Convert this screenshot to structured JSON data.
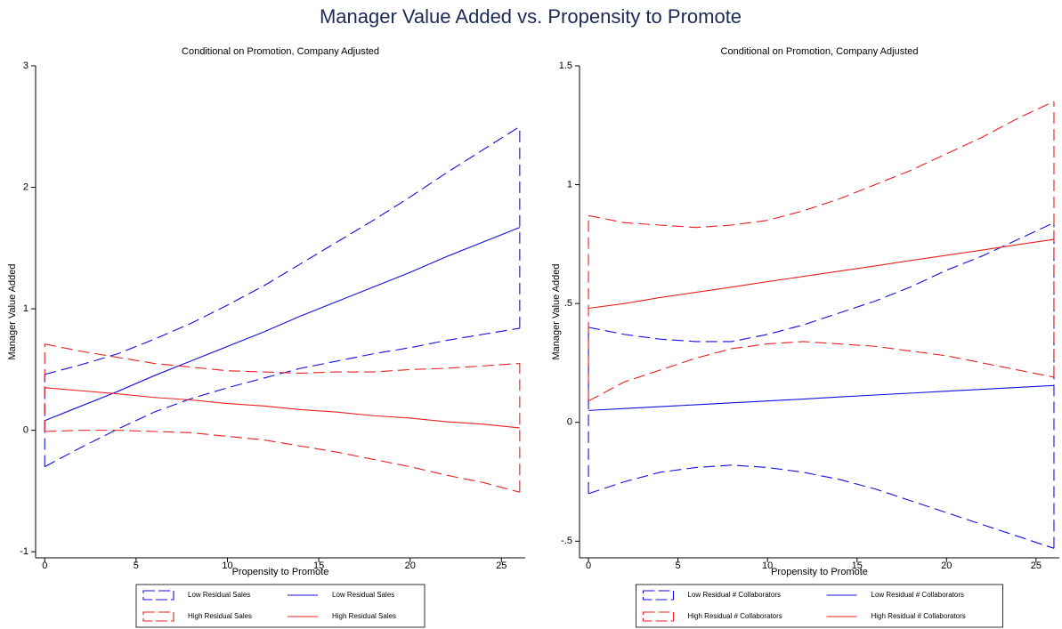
{
  "title": "Manager Value Added vs. Propensity to Promote",
  "chart_data": [
    {
      "type": "line",
      "title": "Conditional on Promotion, Company Adjusted",
      "x_label": "Propensity to Promote",
      "y_label": "Manager Value Added",
      "x": [
        0,
        2,
        4,
        6,
        8,
        10,
        12,
        14,
        16,
        18,
        20,
        22,
        24,
        26
      ],
      "series": [
        {
          "name": "Low Residual Sales",
          "style": "band",
          "color": "#1010e0",
          "upper": [
            0.46,
            0.54,
            0.63,
            0.75,
            0.88,
            1.03,
            1.19,
            1.37,
            1.55,
            1.73,
            1.92,
            2.12,
            2.31,
            2.5
          ],
          "lower": [
            -0.3,
            -0.14,
            0.01,
            0.15,
            0.26,
            0.35,
            0.43,
            0.51,
            0.57,
            0.63,
            0.68,
            0.74,
            0.79,
            0.84
          ]
        },
        {
          "name": "Low Residual Sales",
          "style": "line",
          "color": "#1010e0",
          "values": [
            0.08,
            0.2,
            0.32,
            0.45,
            0.57,
            0.69,
            0.81,
            0.94,
            1.06,
            1.18,
            1.3,
            1.43,
            1.55,
            1.67
          ]
        },
        {
          "name": "High Residual Sales",
          "style": "band",
          "color": "#e82020",
          "upper": [
            0.71,
            0.65,
            0.6,
            0.55,
            0.52,
            0.49,
            0.48,
            0.47,
            0.48,
            0.48,
            0.5,
            0.51,
            0.53,
            0.55
          ],
          "lower": [
            -0.01,
            0.0,
            0.0,
            -0.01,
            -0.02,
            -0.05,
            -0.08,
            -0.13,
            -0.18,
            -0.24,
            -0.3,
            -0.37,
            -0.43,
            -0.51
          ]
        },
        {
          "name": "High Residual Sales",
          "style": "line",
          "color": "#e82020",
          "values": [
            0.35,
            0.325,
            0.3,
            0.27,
            0.25,
            0.22,
            0.2,
            0.17,
            0.15,
            0.12,
            0.1,
            0.07,
            0.05,
            0.02
          ]
        }
      ],
      "xlim": [
        -0.5,
        26.3
      ],
      "ylim": [
        -1.05,
        3
      ],
      "xticks": [
        0,
        5,
        10,
        15,
        20,
        25
      ],
      "yticks": [
        -1,
        0,
        1,
        2,
        3
      ]
    },
    {
      "type": "line",
      "title": "Conditional on Promotion, Company Adjusted",
      "x_label": "Propensity to Promote",
      "y_label": "Manager Value Added",
      "x": [
        0,
        2,
        4,
        6,
        8,
        10,
        12,
        14,
        16,
        18,
        20,
        22,
        24,
        26
      ],
      "series": [
        {
          "name": "Low Residual # Collaborators",
          "style": "band",
          "color": "#1010e0",
          "upper": [
            0.4,
            0.37,
            0.35,
            0.34,
            0.34,
            0.37,
            0.41,
            0.46,
            0.51,
            0.57,
            0.64,
            0.7,
            0.77,
            0.84
          ],
          "lower": [
            -0.3,
            -0.25,
            -0.21,
            -0.19,
            -0.18,
            -0.19,
            -0.21,
            -0.24,
            -0.28,
            -0.33,
            -0.38,
            -0.43,
            -0.48,
            -0.53
          ]
        },
        {
          "name": "Low Residual # Collaborators",
          "style": "line",
          "color": "#1010e0",
          "values": [
            0.05,
            0.058,
            0.066,
            0.074,
            0.082,
            0.09,
            0.098,
            0.107,
            0.115,
            0.123,
            0.131,
            0.139,
            0.147,
            0.155
          ]
        },
        {
          "name": "High Residual # Collaborators",
          "style": "band",
          "color": "#e82020",
          "upper": [
            0.87,
            0.84,
            0.83,
            0.82,
            0.83,
            0.85,
            0.89,
            0.94,
            1.0,
            1.06,
            1.13,
            1.2,
            1.28,
            1.35
          ],
          "lower": [
            0.09,
            0.17,
            0.22,
            0.27,
            0.31,
            0.33,
            0.34,
            0.33,
            0.32,
            0.3,
            0.28,
            0.25,
            0.22,
            0.19
          ]
        },
        {
          "name": "High Residual # Collaborators",
          "style": "line",
          "color": "#e82020",
          "values": [
            0.48,
            0.5,
            0.525,
            0.547,
            0.569,
            0.592,
            0.614,
            0.636,
            0.658,
            0.681,
            0.703,
            0.725,
            0.748,
            0.77
          ]
        }
      ],
      "xlim": [
        -0.5,
        26.3
      ],
      "ylim": [
        -0.57,
        1.5
      ],
      "xticks": [
        0,
        5,
        10,
        15,
        20,
        25
      ],
      "yticks": [
        {
          "value": -0.5,
          "label": "-.5"
        },
        0,
        {
          "value": 0.5,
          "label": ".5"
        },
        1,
        {
          "value": 1.5,
          "label": "1.5"
        }
      ]
    }
  ]
}
